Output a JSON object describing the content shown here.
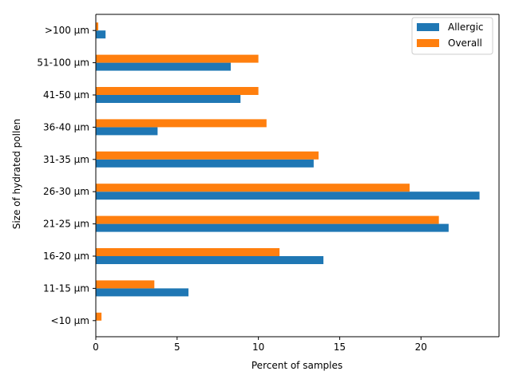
{
  "chart_data": {
    "type": "bar",
    "orientation": "horizontal",
    "title": "",
    "xlabel": "Percent of samples",
    "ylabel": "Size of hydrated pollen",
    "xlim": [
      0,
      24.8
    ],
    "xticks": [
      0,
      5,
      10,
      15,
      20
    ],
    "grid": false,
    "legend_position": "top-right",
    "categories": [
      "<10 µm",
      "11-15 µm",
      "16-20 µm",
      "21-25 µm",
      "26-30 µm",
      "31-35 µm",
      "36-40 µm",
      "41-50 µm",
      "51-100 µm",
      ">100 µm"
    ],
    "series": [
      {
        "name": "Allergic",
        "color": "#1f77b4",
        "values": [
          0.0,
          5.7,
          14.0,
          21.7,
          23.6,
          13.4,
          3.8,
          8.9,
          8.3,
          0.6
        ]
      },
      {
        "name": "Overall",
        "color": "#ff7f0e",
        "values": [
          0.35,
          3.6,
          11.3,
          21.1,
          19.3,
          13.7,
          10.5,
          10.0,
          10.0,
          0.15
        ]
      }
    ]
  }
}
